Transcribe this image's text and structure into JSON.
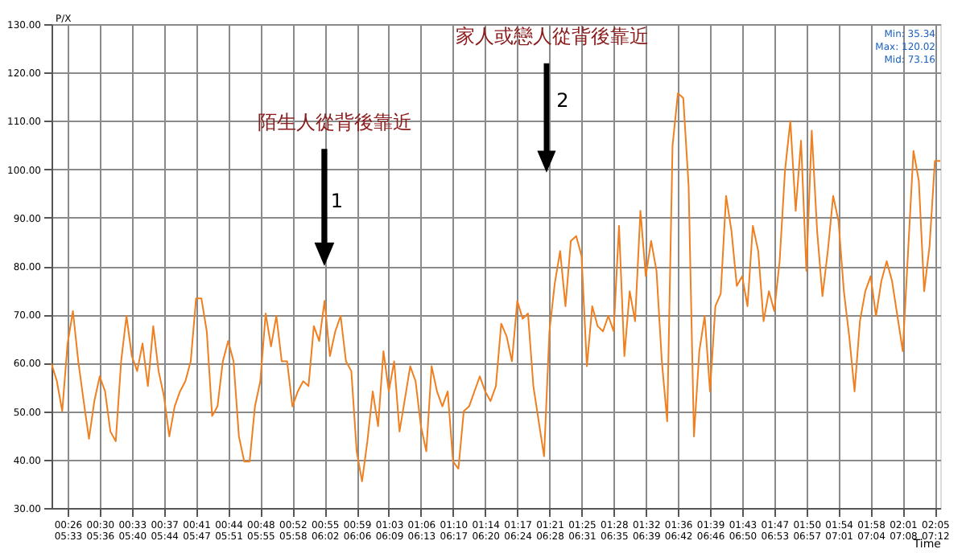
{
  "chart_data": {
    "type": "line",
    "ylabel": "P/X",
    "xlabel": "Time",
    "categories": [
      null,
      null,
      null,
      "00:26\n05:33",
      null,
      null,
      null,
      null,
      null,
      "00:30\n05:36",
      null,
      null,
      null,
      null,
      null,
      "00:33\n05:40",
      null,
      null,
      null,
      null,
      null,
      "00:37\n05:44",
      null,
      null,
      null,
      null,
      null,
      "00:41\n05:47",
      null,
      null,
      null,
      null,
      null,
      "00:44\n05:51",
      null,
      null,
      null,
      null,
      null,
      "00:48\n05:55",
      null,
      null,
      null,
      null,
      null,
      "00:52\n05:58",
      null,
      null,
      null,
      null,
      null,
      "00:55\n06:02",
      null,
      null,
      null,
      null,
      null,
      "00:59\n06:06",
      null,
      null,
      null,
      null,
      null,
      "01:03\n06:09",
      null,
      null,
      null,
      null,
      null,
      "01:06\n06:13",
      null,
      null,
      null,
      null,
      null,
      "01:10\n06:17",
      null,
      null,
      null,
      null,
      null,
      "01:14\n06:20",
      null,
      null,
      null,
      null,
      null,
      "01:17\n06:24",
      null,
      null,
      null,
      null,
      null,
      "01:21\n06:28",
      null,
      null,
      null,
      null,
      null,
      "01:25\n06:31",
      null,
      null,
      null,
      null,
      null,
      "01:28\n06:35",
      null,
      null,
      null,
      null,
      null,
      "01:32\n06:39",
      null,
      null,
      null,
      null,
      null,
      "01:36\n06:42",
      null,
      null,
      null,
      null,
      null,
      "01:39\n06:46",
      null,
      null,
      null,
      null,
      null,
      "01:43\n06:50",
      null,
      null,
      null,
      null,
      null,
      "01:47\n06:53",
      null,
      null,
      null,
      null,
      null,
      "01:50\n06:57",
      null,
      null,
      null,
      null,
      null,
      "01:54\n07:01",
      null,
      null,
      null,
      null,
      null,
      "01:58\n07:04",
      null,
      null,
      null,
      null,
      null,
      "02:01\n07:08",
      null,
      null,
      null,
      null,
      null,
      "02:05\n07:12",
      null
    ],
    "ylim": [
      30,
      130
    ],
    "yticks": [
      {
        "value": 30,
        "label": "30.00"
      },
      {
        "value": 40,
        "label": "40.00"
      },
      {
        "value": 50,
        "label": "50.00"
      },
      {
        "value": 60,
        "label": "60.00"
      },
      {
        "value": 70,
        "label": "70.00"
      },
      {
        "value": 80,
        "label": "80.00"
      },
      {
        "value": 90,
        "label": "90.00"
      },
      {
        "value": 100,
        "label": "100.00"
      },
      {
        "value": 110,
        "label": "110.00"
      },
      {
        "value": 120,
        "label": "120.00"
      },
      {
        "value": 130,
        "label": "130.00"
      }
    ],
    "grid": true,
    "series": [
      {
        "color": "#f07f1f",
        "values": [
          59.8,
          56.2,
          50.0,
          64.0,
          70.7,
          60.3,
          52.1,
          44.3,
          52.1,
          57.2,
          54.1,
          45.8,
          43.8,
          60.3,
          69.7,
          61.4,
          58.3,
          64.0,
          55.2,
          67.6,
          58.3,
          53.1,
          44.8,
          51.0,
          54.1,
          56.2,
          60.3,
          73.3,
          73.3,
          66.5,
          49.0,
          51.0,
          60.3,
          64.5,
          60.3,
          44.8,
          39.6,
          39.6,
          51.0,
          56.2,
          70.2,
          63.4,
          69.7,
          60.3,
          60.3,
          51.0,
          54.1,
          56.2,
          55.2,
          67.6,
          64.5,
          72.8,
          61.4,
          66.5,
          69.7,
          60.3,
          58.3,
          41.7,
          35.5,
          43.8,
          54.1,
          46.9,
          62.4,
          54.1,
          60.3,
          45.8,
          52.5,
          59.3,
          56.2,
          46.9,
          41.7,
          59.3,
          54.1,
          51.0,
          54.1,
          39.6,
          38.1,
          50.0,
          51.0,
          54.1,
          57.2,
          54.1,
          52.1,
          55.2,
          68.1,
          65.5,
          60.3,
          72.8,
          69.1,
          70.2,
          55.2,
          47.9,
          40.7,
          66.5,
          76.4,
          83.1,
          71.7,
          85.2,
          86.2,
          82.1,
          59.3,
          71.7,
          67.6,
          66.5,
          69.7,
          66.5,
          88.3,
          61.4,
          74.8,
          68.6,
          91.4,
          77.9,
          85.2,
          79.0,
          60.3,
          47.9,
          104.9,
          115.7,
          114.7,
          96.6,
          44.8,
          62.4,
          69.7,
          54.1,
          71.7,
          74.3,
          94.5,
          87.3,
          75.9,
          77.9,
          71.7,
          88.3,
          83.1,
          68.6,
          74.8,
          70.7,
          81.0,
          99.7,
          110.0,
          91.4,
          105.9,
          79.0,
          108.0,
          87.3,
          73.8,
          83.1,
          94.5,
          89.3,
          74.8,
          65.5,
          54.1,
          68.6,
          74.8,
          77.9,
          69.7,
          76.9,
          81.0,
          76.9,
          69.7,
          62.4,
          83.1,
          103.8,
          97.6,
          74.8,
          84.1,
          101.7,
          101.7
        ]
      }
    ],
    "annotations": [
      "陌生人從背後靠近",
      "1",
      "家人或戀人從背後靠近",
      "2",
      "Min: 35.34",
      "Max: 120.02",
      "Mid: 73.16"
    ]
  }
}
